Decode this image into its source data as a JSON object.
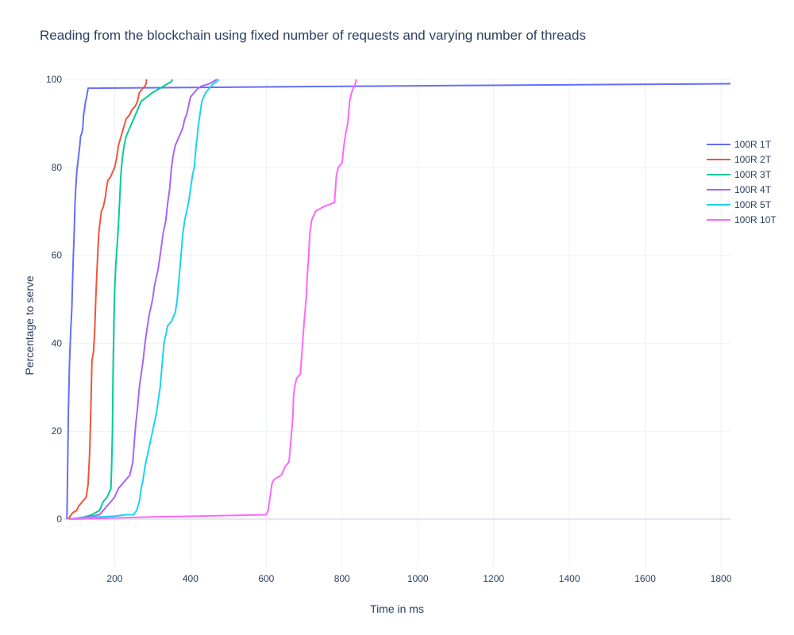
{
  "chart_data": {
    "type": "line",
    "title": "Reading from the blockchain using fixed number of requests and varying number of threads",
    "xlabel": "Time in ms",
    "ylabel": "Percentage to serve",
    "xlim": [
      65,
      1825
    ],
    "ylim": [
      -11,
      100
    ],
    "xticks": [
      200,
      400,
      600,
      800,
      1000,
      1200,
      1400,
      1600,
      1800
    ],
    "yticks": [
      0,
      20,
      40,
      60,
      80,
      100
    ],
    "grid": true,
    "legend_position": "right",
    "series": [
      {
        "name": "100R 1T",
        "color": "#636efa",
        "x": [
          74,
          78,
          81,
          84,
          87,
          89,
          91,
          93,
          95,
          97,
          100,
          104,
          108,
          110,
          114,
          116,
          118,
          120,
          123,
          126,
          130,
          1100,
          1825
        ],
        "y": [
          0,
          25,
          36,
          43,
          48,
          55,
          60,
          65,
          71,
          75,
          79,
          82,
          85,
          87,
          88,
          89,
          92,
          93,
          95,
          96,
          98,
          98.6,
          99
        ]
      },
      {
        "name": "100R 2T",
        "color": "#ef553b",
        "x": [
          78,
          85,
          90,
          100,
          105,
          115,
          125,
          130,
          134,
          137,
          140,
          144,
          147,
          150,
          155,
          158,
          162,
          165,
          170,
          175,
          178,
          182,
          190,
          195,
          200,
          205,
          210,
          220,
          230,
          240,
          245,
          255,
          260,
          265,
          270,
          275,
          280,
          283,
          284
        ],
        "y": [
          0,
          1,
          1.5,
          2,
          3,
          4,
          5,
          8,
          15,
          25,
          36,
          38,
          42,
          50,
          60,
          65,
          68,
          70,
          71,
          73,
          75,
          77,
          78,
          79,
          80,
          82,
          85,
          88,
          91,
          92,
          93,
          94,
          95,
          97,
          97.5,
          98,
          98.5,
          99,
          100
        ]
      },
      {
        "name": "100R 3T",
        "color": "#00cc96",
        "x": [
          80,
          100,
          120,
          140,
          160,
          170,
          180,
          185,
          190,
          192,
          194,
          196,
          198,
          200,
          203,
          207,
          210,
          213,
          216,
          220,
          225,
          230,
          235,
          240,
          245,
          255,
          260,
          270,
          285,
          300,
          320,
          340,
          350,
          352
        ],
        "y": [
          0,
          0.2,
          0.5,
          1,
          2,
          4,
          5,
          6,
          7,
          12,
          20,
          35,
          45,
          52,
          58,
          63,
          67,
          72,
          78,
          82,
          85,
          87,
          88,
          89,
          90,
          92,
          93,
          95,
          96,
          97,
          98,
          99,
          99.5,
          100
        ]
      },
      {
        "name": "100R 4T",
        "color": "#ab63fa",
        "x": [
          80,
          100,
          130,
          160,
          170,
          180,
          190,
          200,
          210,
          220,
          230,
          240,
          248,
          252,
          256,
          260,
          265,
          270,
          275,
          280,
          285,
          290,
          300,
          305,
          310,
          315,
          320,
          328,
          335,
          340,
          345,
          350,
          355,
          360,
          365,
          370,
          375,
          380,
          385,
          390,
          395,
          400,
          410,
          420,
          430,
          450,
          460,
          470
        ],
        "y": [
          0,
          0.2,
          0.5,
          1,
          2,
          3,
          4,
          5,
          7,
          8,
          9,
          10,
          13,
          18,
          22,
          25,
          30,
          33,
          36,
          40,
          43,
          46,
          50,
          53,
          55,
          57,
          60,
          65,
          68,
          72,
          75,
          80,
          83,
          85,
          86,
          87,
          88,
          89,
          91,
          92,
          94,
          96,
          97,
          98,
          98.5,
          99,
          99.5,
          100
        ]
      },
      {
        "name": "100R 5T",
        "color": "#19d3f3",
        "x": [
          80,
          120,
          160,
          200,
          230,
          250,
          258,
          265,
          270,
          275,
          280,
          285,
          290,
          295,
          300,
          305,
          310,
          315,
          320,
          325,
          330,
          340,
          350,
          360,
          365,
          370,
          375,
          380,
          385,
          390,
          395,
          400,
          405,
          410,
          415,
          418,
          420,
          425,
          430,
          440,
          450,
          460,
          470,
          475
        ],
        "y": [
          0,
          0.3,
          0.5,
          0.7,
          1,
          1,
          2,
          4,
          7,
          9,
          12,
          14,
          16,
          18,
          20,
          22,
          24,
          27,
          30,
          35,
          40,
          44,
          45,
          47,
          50,
          55,
          60,
          65,
          68,
          70,
          72,
          75,
          78,
          80,
          85,
          87,
          89,
          92,
          95,
          97,
          98,
          99,
          99.5,
          100
        ]
      },
      {
        "name": "100R 10T",
        "color": "#ff66ff",
        "x": [
          80,
          300,
          600,
          605,
          610,
          615,
          620,
          640,
          650,
          660,
          665,
          670,
          672,
          675,
          680,
          690,
          700,
          705,
          708,
          712,
          715,
          720,
          730,
          750,
          780,
          785,
          790,
          800,
          805,
          810,
          815,
          818,
          820,
          825,
          830,
          835,
          838
        ],
        "y": [
          0,
          0.5,
          1,
          2,
          5,
          8,
          9,
          10,
          12,
          13,
          18,
          23,
          28,
          30,
          32,
          33,
          45,
          50,
          55,
          60,
          65,
          68,
          70,
          71,
          72,
          78,
          80,
          81,
          85,
          88,
          90,
          93,
          95,
          97,
          98,
          99,
          100
        ]
      }
    ]
  }
}
